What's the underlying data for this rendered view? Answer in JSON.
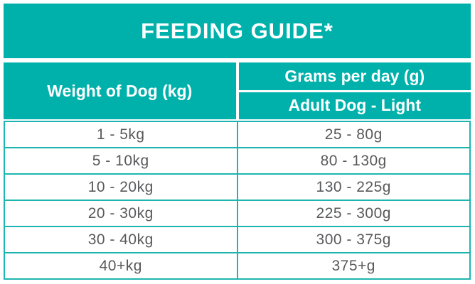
{
  "title": "FEEDING GUIDE*",
  "colors": {
    "teal_header": "#00b1ab",
    "grid_border": "#1db5b0",
    "body_text": "#58595b",
    "header_text": "#ffffff",
    "background": "#ffffff"
  },
  "table": {
    "col1_header": "Weight of Dog (kg)",
    "col2_group_header": "Grams per day (g)",
    "col2_sub_header": "Adult Dog - Light",
    "rows": [
      {
        "weight": "1 - 5kg",
        "grams": "25 - 80g"
      },
      {
        "weight": "5 - 10kg",
        "grams": "80 - 130g"
      },
      {
        "weight": "10 - 20kg",
        "grams": "130 - 225g"
      },
      {
        "weight": "20 - 30kg",
        "grams": "225 - 300g"
      },
      {
        "weight": "30 - 40kg",
        "grams": "300 - 375g"
      },
      {
        "weight": "40+kg",
        "grams": "375+g"
      }
    ]
  }
}
